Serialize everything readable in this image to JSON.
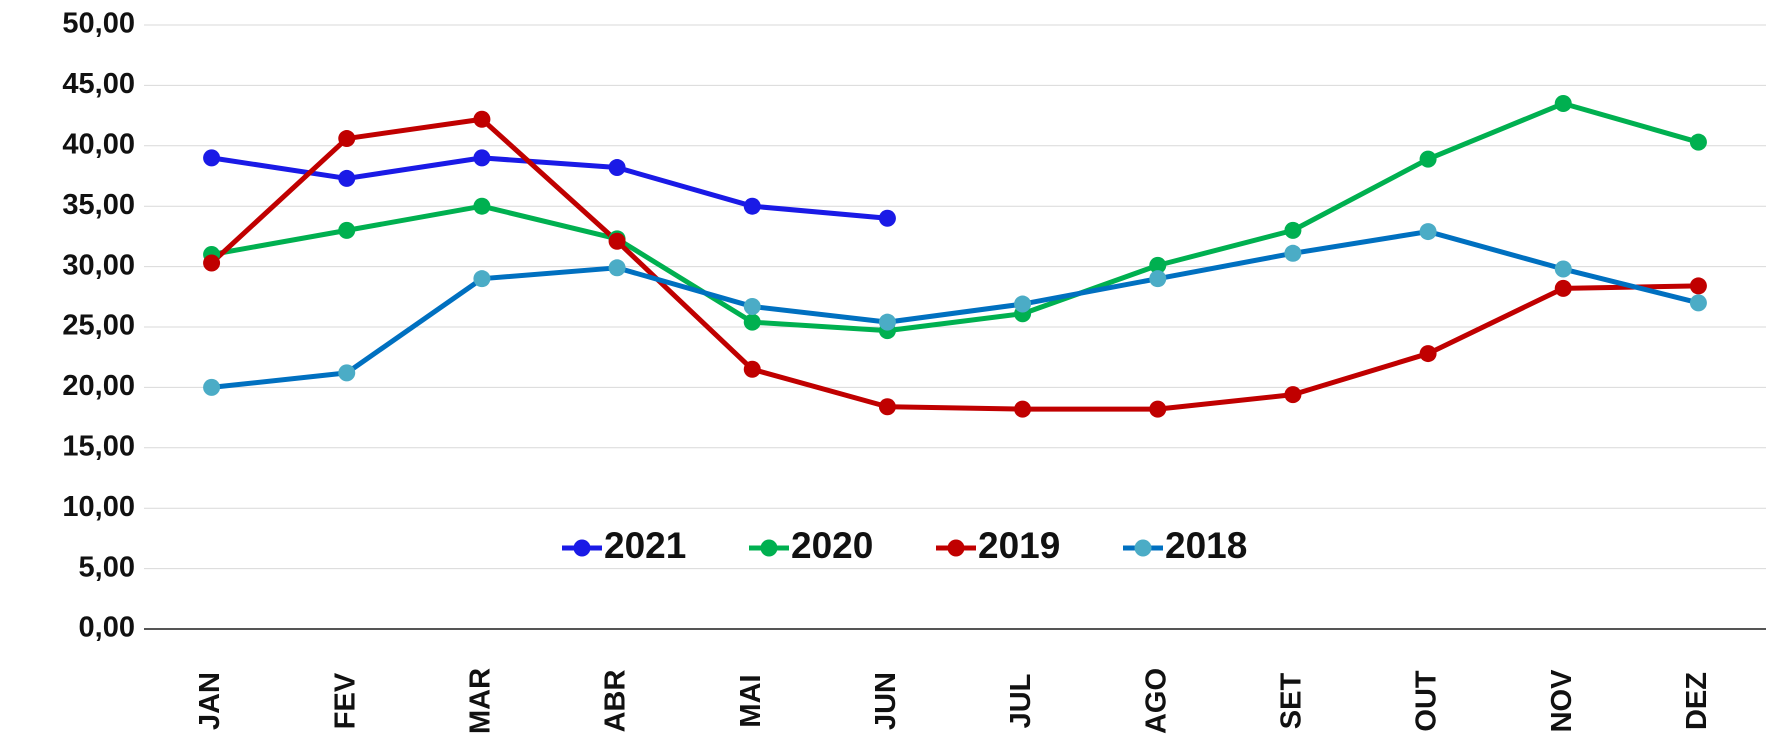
{
  "chart_data": {
    "type": "line",
    "categories": [
      "JAN",
      "FEV",
      "MAR",
      "ABR",
      "MAI",
      "JUN",
      "JUL",
      "AGO",
      "SET",
      "OUT",
      "NOV",
      "DEZ"
    ],
    "series": [
      {
        "name": "2021",
        "color": "#1a1ae6",
        "marker_color": "#1a1ae6",
        "values": [
          39.0,
          37.3,
          39.0,
          38.2,
          35.0,
          34.0,
          null,
          null,
          null,
          null,
          null,
          null
        ]
      },
      {
        "name": "2020",
        "color": "#00b050",
        "marker_color": "#00b050",
        "values": [
          31.0,
          33.0,
          35.0,
          32.3,
          25.4,
          24.7,
          26.1,
          30.1,
          33.0,
          38.9,
          43.5,
          40.3
        ]
      },
      {
        "name": "2019",
        "color": "#c00000",
        "marker_color": "#c00000",
        "values": [
          30.3,
          40.6,
          42.2,
          32.1,
          21.5,
          18.4,
          18.2,
          18.2,
          19.4,
          22.8,
          28.2,
          28.4
        ]
      },
      {
        "name": "2018",
        "color": "#0070c0",
        "marker_color": "#4bacc6",
        "values": [
          20.0,
          21.2,
          29.0,
          29.9,
          26.7,
          25.4,
          26.9,
          29.0,
          31.1,
          32.9,
          29.8,
          27.0
        ]
      }
    ],
    "ylim": [
      0,
      50
    ],
    "yticks": [
      {
        "value": 0,
        "label": "0,00"
      },
      {
        "value": 5,
        "label": "5,00"
      },
      {
        "value": 10,
        "label": "10,00"
      },
      {
        "value": 15,
        "label": "15,00"
      },
      {
        "value": 20,
        "label": "20,00"
      },
      {
        "value": 25,
        "label": "25,00"
      },
      {
        "value": 30,
        "label": "30,00"
      },
      {
        "value": 35,
        "label": "35,00"
      },
      {
        "value": 40,
        "label": "40,00"
      },
      {
        "value": 45,
        "label": "45,00"
      },
      {
        "value": 50,
        "label": "50,00"
      }
    ],
    "grid": true,
    "legend": "bottom"
  }
}
